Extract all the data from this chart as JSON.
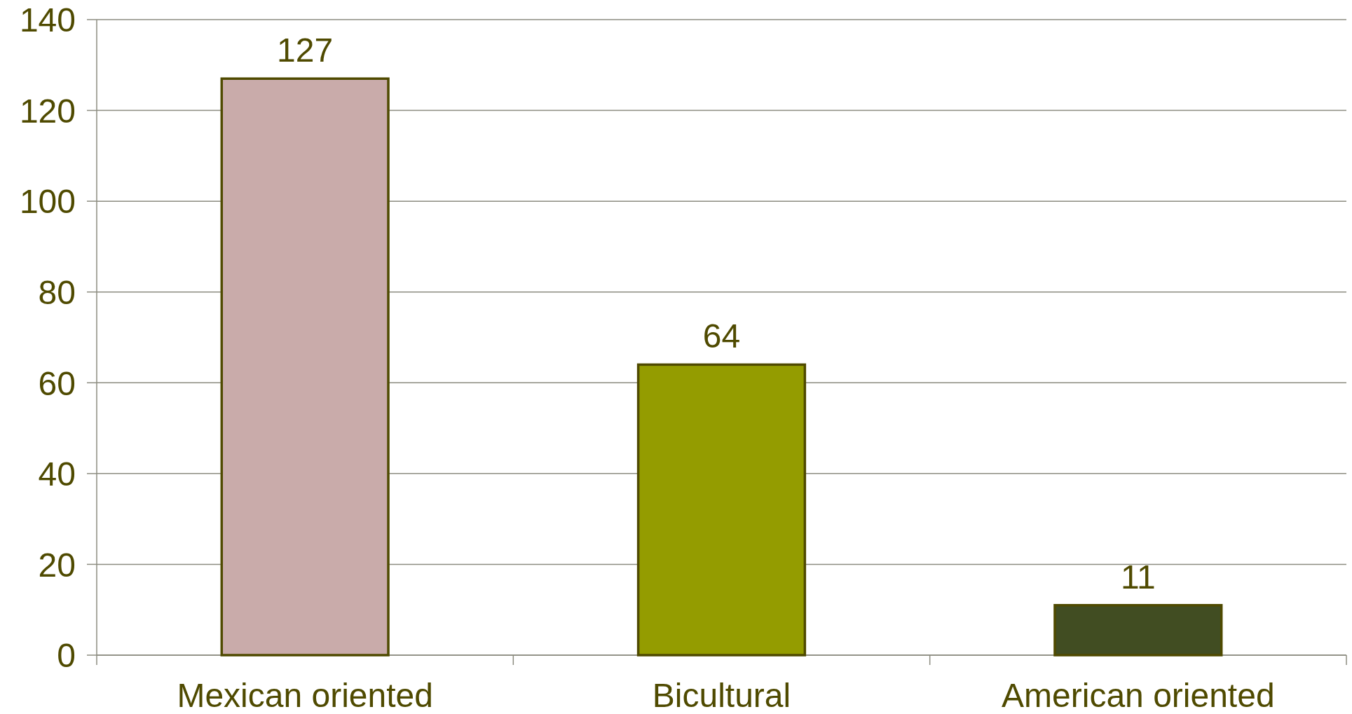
{
  "chart_data": {
    "type": "bar",
    "categories": [
      "Mexican oriented",
      "Bicultural",
      "American oriented"
    ],
    "values": [
      127,
      64,
      11
    ],
    "colors": [
      "#c9abaa",
      "#949c00",
      "#414d22"
    ],
    "ylim": [
      0,
      140
    ],
    "yticks": [
      0,
      20,
      40,
      60,
      80,
      100,
      120,
      140
    ],
    "grid": "y",
    "data_labels": true
  }
}
